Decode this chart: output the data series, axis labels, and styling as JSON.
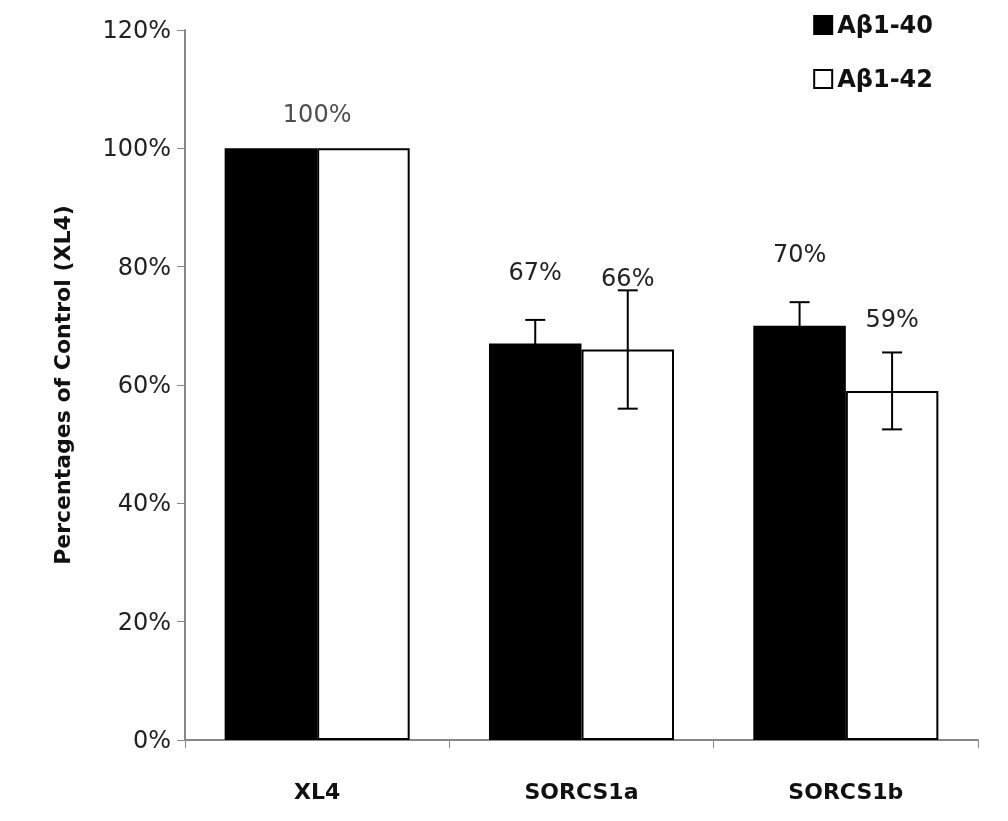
{
  "chart_data": {
    "type": "bar",
    "ylabel": "Percentages of Control (XL4)",
    "categories": [
      "XL4",
      "SORCS1a",
      "SORCS1b"
    ],
    "series": [
      {
        "name": "Aβ1-40",
        "color": "#000000",
        "values": [
          100,
          67,
          70
        ],
        "errors": [
          null,
          4,
          4
        ],
        "value_labels": [
          null,
          "67%",
          "70%"
        ]
      },
      {
        "name": "Aβ1-42",
        "color": "#ffffff",
        "values": [
          100,
          66,
          59
        ],
        "errors": [
          null,
          10,
          6.5
        ],
        "value_labels": [
          null,
          "66%",
          "59%"
        ]
      }
    ],
    "annotations": [
      {
        "text": "100%",
        "x": "XL4",
        "y": 100
      }
    ],
    "ylim": [
      0,
      120
    ],
    "yticks": [
      {
        "value": 0,
        "label": "0%"
      },
      {
        "value": 20,
        "label": "20%"
      },
      {
        "value": 40,
        "label": "40%"
      },
      {
        "value": 60,
        "label": "60%"
      },
      {
        "value": 80,
        "label": "80%"
      },
      {
        "value": 100,
        "label": "100%"
      },
      {
        "value": 120,
        "label": "120%"
      }
    ],
    "grid": false,
    "legend": "top right"
  }
}
